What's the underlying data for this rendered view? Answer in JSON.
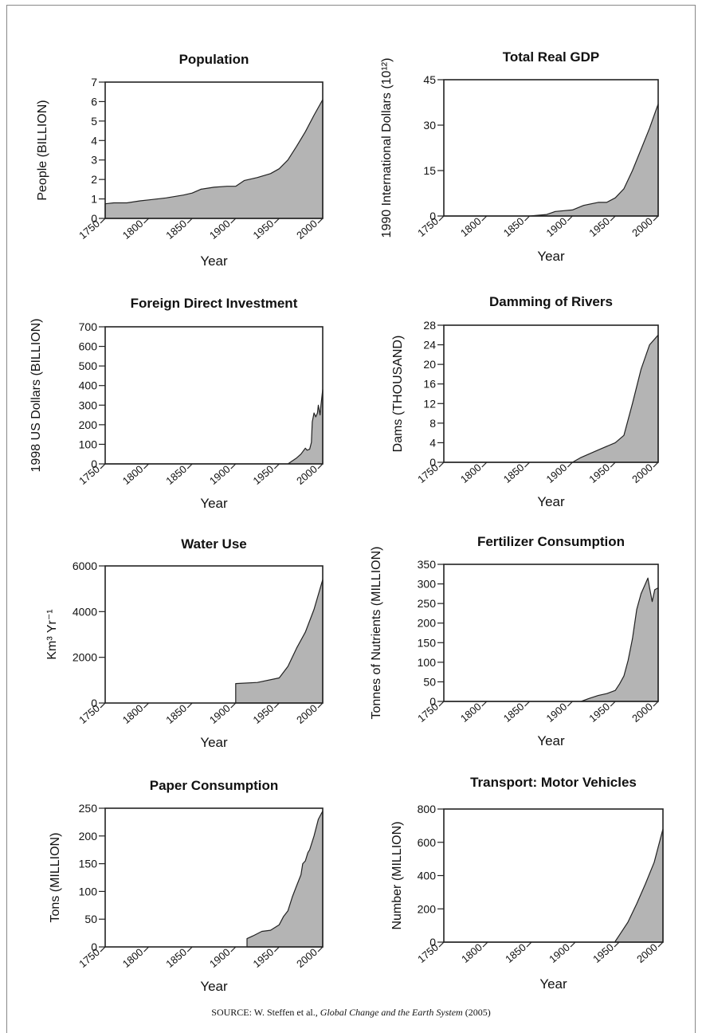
{
  "source": {
    "prefix": "SOURCE: W. Steffen et al., ",
    "title": "Global Change and the Earth System",
    "year": " (2005)"
  },
  "style": {
    "fill": "#b4b4b4",
    "stroke": "#222222",
    "axis": "#222222"
  },
  "chart_data": [
    {
      "type": "area",
      "title": "Population",
      "ylabel": "People (BILLION)",
      "xlabel": "Year",
      "xlim": [
        1750,
        2000
      ],
      "ylim": [
        0,
        7
      ],
      "xticks": [
        1750,
        1800,
        1850,
        1900,
        1950,
        2000
      ],
      "yticks": [
        0,
        1,
        2,
        3,
        4,
        5,
        6,
        7
      ],
      "x": [
        1750,
        1760,
        1775,
        1790,
        1800,
        1820,
        1840,
        1850,
        1860,
        1875,
        1890,
        1900,
        1910,
        1925,
        1940,
        1950,
        1960,
        1970,
        1980,
        1990,
        2000
      ],
      "values": [
        0.75,
        0.8,
        0.8,
        0.9,
        0.95,
        1.05,
        1.2,
        1.3,
        1.5,
        1.6,
        1.65,
        1.65,
        1.95,
        2.1,
        2.3,
        2.55,
        3.0,
        3.7,
        4.45,
        5.3,
        6.1
      ]
    },
    {
      "type": "area",
      "title": "Total Real GDP",
      "ylabel": "1990 International Dollars (10¹²)",
      "xlabel": "Year",
      "xlim": [
        1750,
        2000
      ],
      "ylim": [
        0,
        45
      ],
      "xticks": [
        1750,
        1800,
        1850,
        1900,
        1950,
        2000
      ],
      "yticks": [
        0,
        15,
        30,
        45
      ],
      "x": [
        1750,
        1850,
        1870,
        1880,
        1900,
        1913,
        1930,
        1940,
        1950,
        1960,
        1970,
        1980,
        1990,
        2000
      ],
      "values": [
        0,
        0,
        0.5,
        1.5,
        2,
        3.5,
        4.5,
        4.5,
        6,
        9,
        15,
        22,
        29,
        37
      ]
    },
    {
      "type": "area",
      "title": "Foreign Direct Investment",
      "ylabel": "1998 US Dollars (BILLION)",
      "xlabel": "Year",
      "xlim": [
        1750,
        2000
      ],
      "ylim": [
        0,
        700
      ],
      "xticks": [
        1750,
        1800,
        1850,
        1900,
        1950,
        2000
      ],
      "yticks": [
        0,
        100,
        200,
        300,
        400,
        500,
        600,
        700
      ],
      "x": [
        1750,
        1960,
        1965,
        1970,
        1975,
        1980,
        1982,
        1985,
        1987,
        1988,
        1990,
        1992,
        1994,
        1995,
        1997,
        1998,
        2000
      ],
      "values": [
        0,
        0,
        15,
        30,
        50,
        80,
        70,
        75,
        110,
        215,
        260,
        240,
        260,
        300,
        250,
        300,
        380
      ]
    },
    {
      "type": "area",
      "title": "Damming of Rivers",
      "ylabel": "Dams (THOUSAND)",
      "xlabel": "Year",
      "xlim": [
        1750,
        2000
      ],
      "ylim": [
        0,
        28
      ],
      "xticks": [
        1750,
        1800,
        1850,
        1900,
        1950,
        2000
      ],
      "yticks": [
        0,
        4,
        8,
        12,
        16,
        20,
        24,
        28
      ],
      "x": [
        1750,
        1900,
        1910,
        1930,
        1950,
        1960,
        1970,
        1980,
        1990,
        2000
      ],
      "values": [
        0,
        0,
        1,
        2.5,
        4,
        5.5,
        12,
        19,
        24,
        26
      ]
    },
    {
      "type": "area",
      "title": "Water Use",
      "ylabel": "Km³ Yr⁻¹",
      "xlabel": "Year",
      "xlim": [
        1750,
        2000
      ],
      "ylim": [
        0,
        6000
      ],
      "xticks": [
        1750,
        1800,
        1850,
        1900,
        1950,
        2000
      ],
      "yticks": [
        0,
        2000,
        4000,
        6000
      ],
      "x": [
        1900,
        1900,
        1925,
        1950,
        1960,
        1970,
        1980,
        1990,
        2000
      ],
      "values": [
        0,
        850,
        900,
        1100,
        1600,
        2400,
        3100,
        4100,
        5400
      ]
    },
    {
      "type": "area",
      "title": "Fertilizer Consumption",
      "ylabel": "Tonnes of Nutrients (MILLION)",
      "xlabel": "Year",
      "xlim": [
        1750,
        2000
      ],
      "ylim": [
        0,
        350
      ],
      "xticks": [
        1750,
        1800,
        1850,
        1900,
        1950,
        2000
      ],
      "yticks": [
        0,
        50,
        100,
        150,
        200,
        250,
        300,
        350
      ],
      "x": [
        1750,
        1910,
        1920,
        1930,
        1940,
        1950,
        1955,
        1960,
        1965,
        1970,
        1975,
        1980,
        1985,
        1988,
        1990,
        1993,
        1996,
        2000
      ],
      "values": [
        0,
        0,
        8,
        15,
        20,
        28,
        45,
        65,
        105,
        160,
        235,
        275,
        300,
        315,
        290,
        255,
        285,
        290
      ]
    },
    {
      "type": "area",
      "title": "Paper Consumption",
      "ylabel": "Tons (MILLION)",
      "xlabel": "Year",
      "xlim": [
        1750,
        2000
      ],
      "ylim": [
        0,
        250
      ],
      "xticks": [
        1750,
        1800,
        1850,
        1900,
        1950,
        2000
      ],
      "yticks": [
        0,
        50,
        100,
        150,
        200,
        250
      ],
      "x": [
        1913,
        1913,
        1920,
        1930,
        1940,
        1950,
        1955,
        1960,
        1965,
        1970,
        1975,
        1977,
        1980,
        1983,
        1985,
        1990,
        1995,
        2000
      ],
      "values": [
        0,
        15,
        20,
        28,
        30,
        40,
        55,
        65,
        90,
        110,
        130,
        150,
        155,
        170,
        175,
        200,
        230,
        245
      ]
    },
    {
      "type": "area",
      "title": "Transport: Motor Vehicles",
      "ylabel": "Number (MILLION)",
      "xlabel": "Year",
      "xlim": [
        1750,
        2000
      ],
      "ylim": [
        0,
        800
      ],
      "xticks": [
        1750,
        1800,
        1850,
        1900,
        1950,
        2000
      ],
      "yticks": [
        0,
        200,
        400,
        600,
        800
      ],
      "x": [
        1750,
        1945,
        1950,
        1960,
        1970,
        1980,
        1990,
        2000
      ],
      "values": [
        0,
        0,
        40,
        120,
        230,
        350,
        480,
        680
      ]
    }
  ]
}
